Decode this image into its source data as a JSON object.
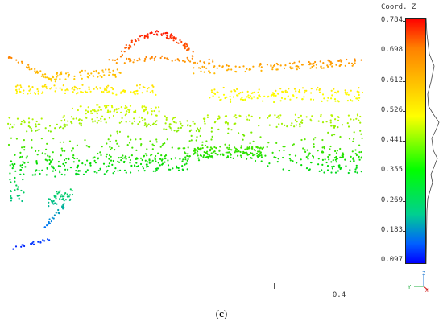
{
  "colorbar": {
    "title": "Coord. Z",
    "ticks": [
      "0.784",
      "0.698",
      "0.612",
      "0.526",
      "0.441",
      "0.355",
      "0.269",
      "0.183",
      "0.097"
    ],
    "colors": {
      "top": "#ff0000",
      "mid": "#ffff00",
      "low": "#00ff00",
      "bottom": "#0000ff"
    }
  },
  "scale_bar": {
    "label": "0.4"
  },
  "axes_indicator": {
    "z": "Z",
    "y": "Y",
    "x": "X",
    "icon": "axes-triad-icon"
  },
  "caption": {
    "text": "c"
  },
  "point_cloud": {
    "field": "Coord. Z",
    "min": 0.097,
    "max": 0.784
  }
}
